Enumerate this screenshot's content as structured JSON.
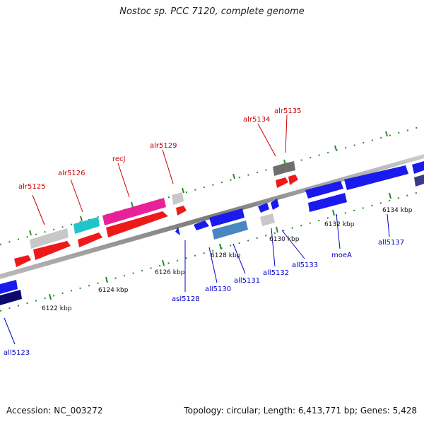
{
  "title": "Nostoc sp. PCC 7120, complete genome",
  "accession_label": "Accession: NC_003272",
  "genome_info": "Topology: circular; Length: 6,413,771 bp; Genes: 5,428",
  "ticks": [
    {
      "label": "6122 kbp"
    },
    {
      "label": "6124 kbp"
    },
    {
      "label": "6126 kbp"
    },
    {
      "label": "6128 kbp"
    },
    {
      "label": "6130 kbp"
    },
    {
      "label": "6132 kbp"
    },
    {
      "label": "6134 kbp"
    }
  ],
  "forward_labels": [
    {
      "name": "alr5125",
      "color": "#cc0000"
    },
    {
      "name": "alr5126",
      "color": "#cc0000"
    },
    {
      "name": "recJ",
      "color": "#cc0000"
    },
    {
      "name": "alr5129",
      "color": "#cc0000"
    },
    {
      "name": "alr5134",
      "color": "#cc0000"
    },
    {
      "name": "alr5135",
      "color": "#cc0000"
    }
  ],
  "reverse_labels": [
    {
      "name": "all5123",
      "color": "#0000cc"
    },
    {
      "name": "asl5128",
      "color": "#0000cc"
    },
    {
      "name": "all5130",
      "color": "#0000cc"
    },
    {
      "name": "all5131",
      "color": "#0000cc"
    },
    {
      "name": "all5132",
      "color": "#0000cc"
    },
    {
      "name": "all5133",
      "color": "#0000cc"
    },
    {
      "name": "moeA",
      "color": "#0000cc"
    },
    {
      "name": "all5137",
      "color": "#0000cc"
    }
  ],
  "colors": {
    "forward_gene": "#ff2020",
    "reverse_gene": "#1a1aff",
    "backbone": "#888888",
    "tick": "#2a8a2a"
  }
}
